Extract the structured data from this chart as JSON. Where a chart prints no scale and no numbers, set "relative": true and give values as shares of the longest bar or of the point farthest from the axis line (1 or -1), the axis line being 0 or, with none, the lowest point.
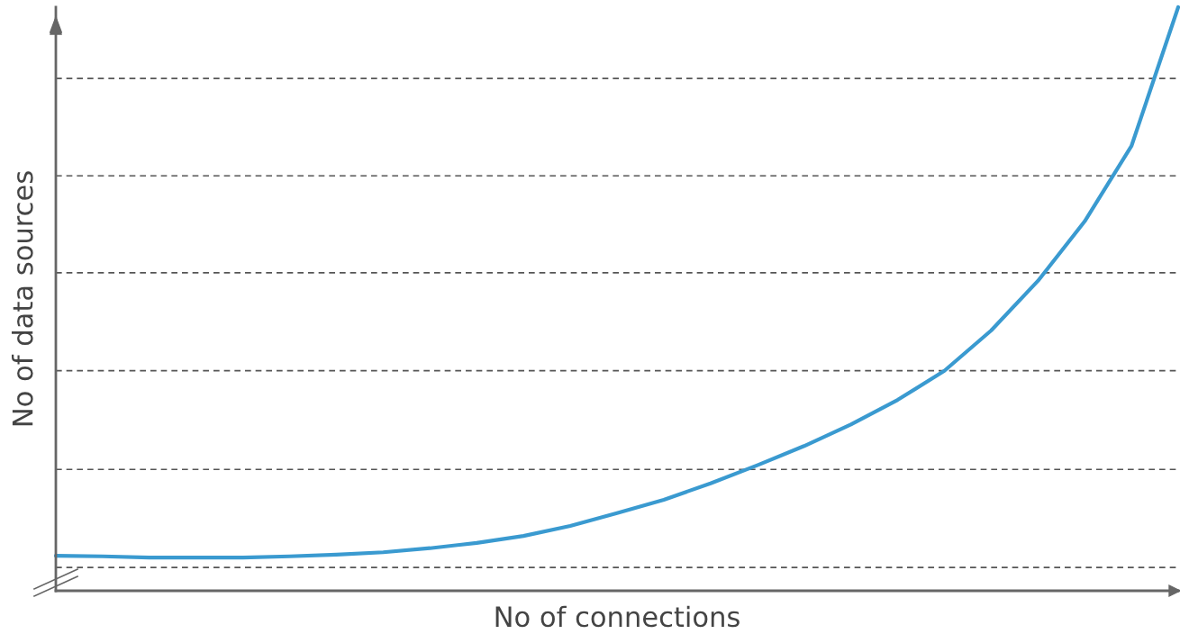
{
  "chart_data": {
    "type": "line",
    "relative": true,
    "xlabel": "No of connections",
    "ylabel": "No of data sources",
    "categories": [
      null,
      null,
      null,
      null,
      null,
      null,
      null,
      null,
      null,
      null,
      null,
      null,
      null,
      null,
      null,
      null,
      null,
      null,
      null,
      null,
      null,
      null,
      null,
      null,
      null
    ],
    "series": [
      {
        "color": "#3a9ad0",
        "values": [
          0.06,
          0.059,
          0.057,
          0.057,
          0.057,
          0.059,
          0.062,
          0.066,
          0.073,
          0.082,
          0.094,
          0.111,
          0.133,
          0.156,
          0.184,
          0.215,
          0.248,
          0.285,
          0.327,
          0.377,
          0.446,
          0.531,
          0.633,
          0.762,
          1.0
        ]
      }
    ],
    "ref_lines": [
      {
        "axis": "y",
        "value": 0.04,
        "color": "#555555",
        "line_style": "dashed"
      },
      {
        "axis": "y",
        "value": 0.208,
        "color": "#555555",
        "line_style": "dashed"
      },
      {
        "axis": "y",
        "value": 0.377,
        "color": "#555555",
        "line_style": "dashed"
      },
      {
        "axis": "y",
        "value": 0.545,
        "color": "#555555",
        "line_style": "dashed"
      },
      {
        "axis": "y",
        "value": 0.711,
        "color": "#555555",
        "line_style": "dashed"
      },
      {
        "axis": "y",
        "value": 0.878,
        "color": "#555555",
        "line_style": "dashed"
      }
    ],
    "grid": false,
    "legend": false,
    "marker": "none",
    "line_style": "solid",
    "tick_labels": false
  }
}
